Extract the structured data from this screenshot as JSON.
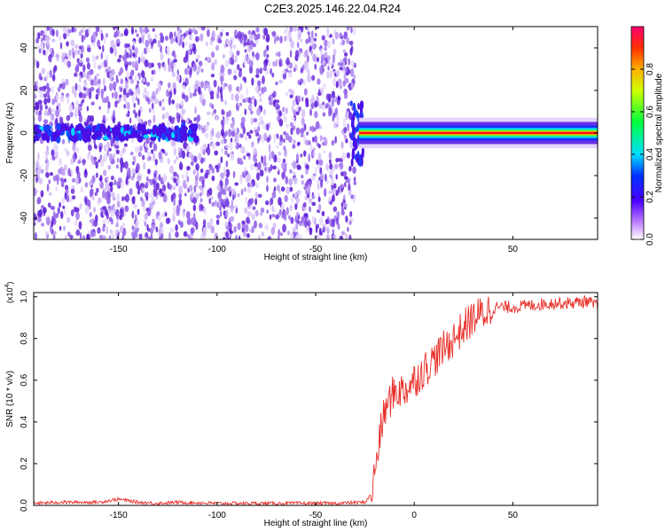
{
  "title": "C2E3.2025.146.22.04.R24",
  "colors": {
    "signal_line": "#e8302a",
    "spectral_low": "#ffffff",
    "spectral_mid": "#7a2ee0",
    "spectral_high": "#ff0000"
  },
  "chart_data": [
    {
      "type": "heatmap",
      "xlabel": "Height of straight line (km)",
      "ylabel": "Frequency (Hz)",
      "xlim": [
        -193,
        93
      ],
      "ylim": [
        -50,
        50
      ],
      "xticks": [
        -150,
        -100,
        -50,
        0,
        50
      ],
      "yticks": [
        -40,
        -20,
        0,
        20,
        40
      ],
      "colorbar": {
        "label": "Normalized spectral amplitude",
        "range": [
          0.0,
          1.0
        ],
        "ticks": [
          "0.0",
          "0.2",
          "0.4",
          "0.6",
          "0.8"
        ],
        "tick_values": [
          0.0,
          0.2,
          0.4,
          0.6,
          0.8
        ]
      },
      "regions": [
        {
          "x_range": [
            -193,
            -30
          ],
          "description_values": {
            "noise_amplitude": 0.2,
            "center_line_amplitude": 0.3
          }
        },
        {
          "x_range": [
            -30,
            93
          ],
          "description_values": {
            "noise_amplitude": 0.0,
            "center_line_amplitude": 0.95
          }
        }
      ]
    },
    {
      "type": "line",
      "xlabel": "Height of straight line (km)",
      "ylabel": "SNR (10 * v/v)",
      "y_multiplier": "(x10",
      "y_multiplier_exp": "4",
      "y_multiplier_close": ")",
      "xlim": [
        -193,
        93
      ],
      "ylim": [
        0.0,
        1.02
      ],
      "xticks": [
        -150,
        -100,
        -50,
        0,
        50
      ],
      "yticks": [
        "0.0",
        "0.2",
        "0.4",
        "0.6",
        "0.8",
        "1.0"
      ],
      "ytick_values": [
        0.0,
        0.2,
        0.4,
        0.6,
        0.8,
        1.0
      ],
      "series": [
        {
          "x": [
            -193,
            -180,
            -170,
            -160,
            -150,
            -140,
            -130,
            -120,
            -100,
            -80,
            -60,
            -40,
            -25,
            -22,
            -20,
            -18,
            -15,
            -10,
            -5,
            0,
            5,
            10,
            15,
            20,
            25,
            30,
            35,
            40,
            50,
            60,
            70,
            80,
            88,
            93
          ],
          "values": [
            0.01,
            0.015,
            0.015,
            0.015,
            0.03,
            0.015,
            0.01,
            0.015,
            0.01,
            0.01,
            0.01,
            0.01,
            0.015,
            0.05,
            0.15,
            0.3,
            0.45,
            0.55,
            0.55,
            0.6,
            0.65,
            0.7,
            0.75,
            0.8,
            0.85,
            0.9,
            0.92,
            0.95,
            0.95,
            0.96,
            0.97,
            0.97,
            0.98,
            0.95
          ]
        }
      ]
    }
  ]
}
